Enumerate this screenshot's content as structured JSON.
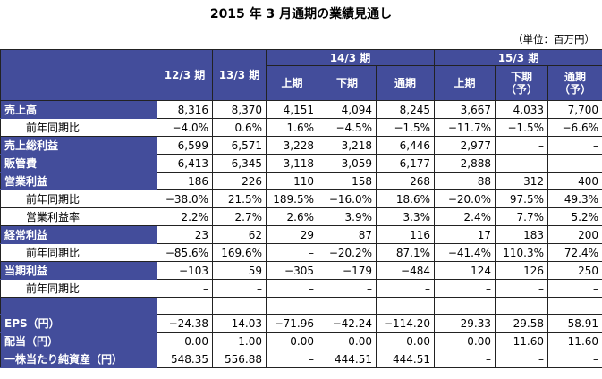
{
  "header": {
    "title": "2015 年 3 月通期の業績見通し",
    "unit": "（単位：百万円）"
  },
  "table": {
    "groups": [
      "14/3 期",
      "15/3 期"
    ],
    "columns": [
      [
        "12/3 期"
      ],
      [
        "13/3 期"
      ],
      [
        "上期"
      ],
      [
        "下期"
      ],
      [
        "通期"
      ],
      [
        "上期"
      ],
      [
        "下期",
        "（予）"
      ],
      [
        "通期",
        "（予）"
      ]
    ],
    "rows": [
      {
        "label": "売上高",
        "cells": [
          "8,316",
          "8,370",
          "4,151",
          "4,094",
          "8,245",
          "3,667",
          "4,033",
          "7,700"
        ],
        "subrows": [
          {
            "label": "前年同期比",
            "cells": [
              "−4.0%",
              "0.6%",
              "1.6%",
              "−4.5%",
              "−1.5%",
              "−11.7%",
              "−1.5%",
              "−6.6%"
            ]
          }
        ]
      },
      {
        "label": "売上総利益",
        "cells": [
          "6,599",
          "6,571",
          "3,228",
          "3,218",
          "6,446",
          "2,977",
          "–",
          "–"
        ],
        "subrows": []
      },
      {
        "label": "販管費",
        "cells": [
          "6,413",
          "6,345",
          "3,118",
          "3,059",
          "6,177",
          "2,888",
          "–",
          "–"
        ],
        "subrows": []
      },
      {
        "label": "営業利益",
        "cells": [
          "186",
          "226",
          "110",
          "158",
          "268",
          "88",
          "312",
          "400"
        ],
        "subrows": [
          {
            "label": "前年同期比",
            "cells": [
              "−38.0%",
              "21.5%",
              "189.5%",
              "−16.0%",
              "18.6%",
              "−20.0%",
              "97.5%",
              "49.3%"
            ]
          },
          {
            "label": "営業利益率",
            "cells": [
              "2.2%",
              "2.7%",
              "2.6%",
              "3.9%",
              "3.3%",
              "2.4%",
              "7.7%",
              "5.2%"
            ]
          }
        ]
      },
      {
        "label": "経常利益",
        "cells": [
          "23",
          "62",
          "29",
          "87",
          "116",
          "17",
          "183",
          "200"
        ],
        "subrows": [
          {
            "label": "前年同期比",
            "cells": [
              "−85.6%",
              "169.6%",
              "–",
              "−20.2%",
              "87.1%",
              "−41.4%",
              "110.3%",
              "72.4%"
            ]
          }
        ]
      },
      {
        "label": "当期利益",
        "cells": [
          "−103",
          "59",
          "−305",
          "−179",
          "−484",
          "124",
          "126",
          "250"
        ],
        "subrows": [
          {
            "label": "前年同期比",
            "cells": [
              "–",
              "–",
              "–",
              "–",
              "–",
              "–",
              "–",
              "–"
            ]
          }
        ]
      },
      {
        "label": "EPS（円）",
        "cells": [
          "−24.38",
          "14.03",
          "−71.96",
          "−42.24",
          "−114.20",
          "29.33",
          "29.58",
          "58.91"
        ],
        "subrows": []
      },
      {
        "label": "配当（円）",
        "cells": [
          "0.00",
          "1.00",
          "0.00",
          "0.00",
          "0.00",
          "0.00",
          "11.60",
          "11.60"
        ],
        "subrows": []
      },
      {
        "label": "一株当たり純資産（円）",
        "cells": [
          "548.35",
          "556.88",
          "–",
          "444.51",
          "444.51",
          "–",
          "–",
          "–"
        ],
        "subrows": []
      }
    ]
  }
}
